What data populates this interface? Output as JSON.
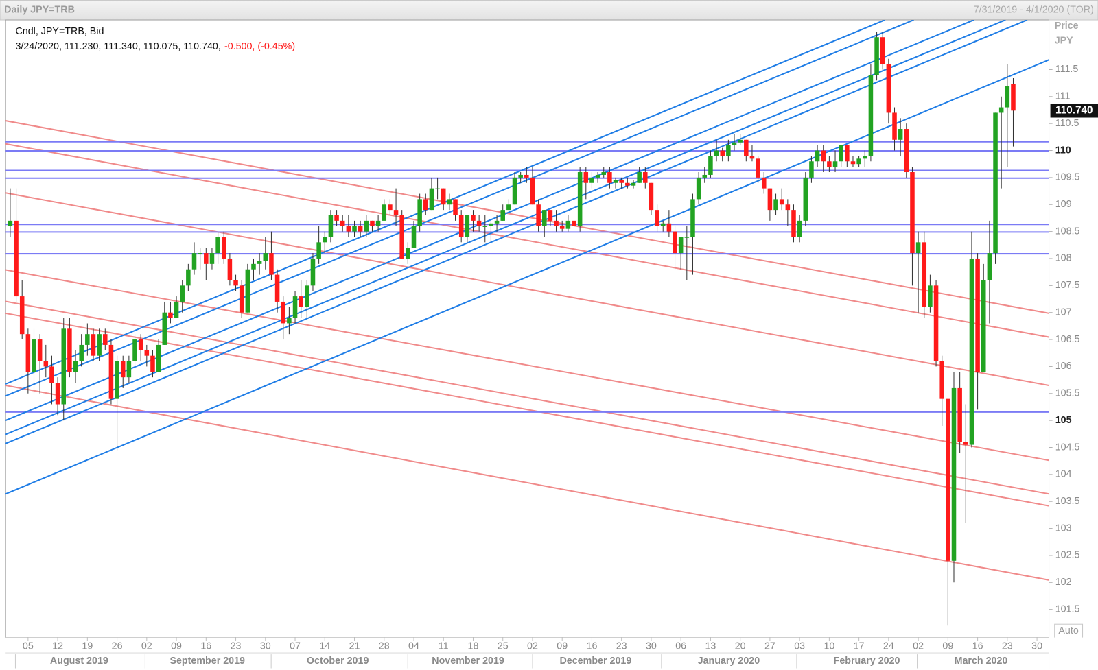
{
  "window": {
    "title": "Daily JPY=TRB",
    "range": "7/31/2019 - 4/1/2020 (TOR)"
  },
  "chart_data": {
    "type": "candlestick",
    "legend_title": "Cndl, JPY=TRB, Bid",
    "legend_values": "3/24/2020, 111.230, 111.340, 110.075, 110.740,",
    "legend_change": "-0.500, (-0.45%)",
    "y_axis_label": "Price",
    "y_axis_unit": "JPY",
    "last_price": {
      "value": 110.74,
      "label": "110.740"
    },
    "auto_label": "Auto",
    "up_color": "#22a322",
    "down_color": "#ff1a1a",
    "major_tick_step": 5,
    "ylim": [
      100.98,
      112.42
    ],
    "yticks": [
      101.5,
      102,
      102.5,
      103,
      103.5,
      104,
      104.5,
      105,
      105.5,
      106,
      106.5,
      107,
      107.5,
      108,
      108.5,
      109,
      109.5,
      110,
      110.5,
      111,
      111.5
    ],
    "x_labels": [
      "05",
      "12",
      "19",
      "26",
      "02",
      "09",
      "16",
      "23",
      "30",
      "07",
      "14",
      "21",
      "28",
      "04",
      "11",
      "18",
      "25",
      "02",
      "09",
      "16",
      "23",
      "30",
      "06",
      "13",
      "20",
      "27",
      "03",
      "10",
      "17",
      "24",
      "02",
      "09",
      "16",
      "23",
      "30"
    ],
    "month_labels": [
      "August 2019",
      "September 2019",
      "October 2019",
      "November 2019",
      "December 2019",
      "January 2020",
      "February 2020",
      "March 2020"
    ],
    "ohlc": [
      [
        108.6,
        109.3,
        108.4,
        108.7
      ],
      [
        108.7,
        109.3,
        107.2,
        107.3
      ],
      [
        107.3,
        107.6,
        106.5,
        106.6
      ],
      [
        106.6,
        106.7,
        105.5,
        105.9
      ],
      [
        105.9,
        106.7,
        105.5,
        106.5
      ],
      [
        106.5,
        106.6,
        105.5,
        106.1
      ],
      [
        106.1,
        106.4,
        105.8,
        106.0
      ],
      [
        106.0,
        106.2,
        105.3,
        105.7
      ],
      [
        105.7,
        105.8,
        105.1,
        105.3
      ],
      [
        105.3,
        106.9,
        105.0,
        106.7
      ],
      [
        106.7,
        106.9,
        105.8,
        105.9
      ],
      [
        105.9,
        106.3,
        105.7,
        106.1
      ],
      [
        106.1,
        106.6,
        106.0,
        106.4
      ],
      [
        106.4,
        106.8,
        106.2,
        106.6
      ],
      [
        106.6,
        106.7,
        106.1,
        106.2
      ],
      [
        106.2,
        106.7,
        106.1,
        106.6
      ],
      [
        106.6,
        106.7,
        106.3,
        106.4
      ],
      [
        106.4,
        106.5,
        105.3,
        105.4
      ],
      [
        105.4,
        106.2,
        104.45,
        106.1
      ],
      [
        106.1,
        106.2,
        105.6,
        105.8
      ],
      [
        105.8,
        106.2,
        105.7,
        106.1
      ],
      [
        106.1,
        106.6,
        106.0,
        106.5
      ],
      [
        106.5,
        106.6,
        106.1,
        106.3
      ],
      [
        106.3,
        106.4,
        106.0,
        106.2
      ],
      [
        106.2,
        106.3,
        105.8,
        105.9
      ],
      [
        105.9,
        106.5,
        105.9,
        106.4
      ],
      [
        106.4,
        107.2,
        106.4,
        107.0
      ],
      [
        107.0,
        107.2,
        106.8,
        106.9
      ],
      [
        106.9,
        107.3,
        106.9,
        107.2
      ],
      [
        107.2,
        107.6,
        107.0,
        107.5
      ],
      [
        107.5,
        107.9,
        107.4,
        107.8
      ],
      [
        107.8,
        108.3,
        107.7,
        108.1
      ],
      [
        108.1,
        108.2,
        107.8,
        108.1
      ],
      [
        108.1,
        108.2,
        107.6,
        107.9
      ],
      [
        107.9,
        108.2,
        107.8,
        108.1
      ],
      [
        108.1,
        108.5,
        107.9,
        108.4
      ],
      [
        108.4,
        108.5,
        107.9,
        108.0
      ],
      [
        108.0,
        108.1,
        107.5,
        107.6
      ],
      [
        107.6,
        107.7,
        107.4,
        107.5
      ],
      [
        107.5,
        107.6,
        106.9,
        107.0
      ],
      [
        107.0,
        107.9,
        107.0,
        107.8
      ],
      [
        107.8,
        108.0,
        107.6,
        107.9
      ],
      [
        107.9,
        108.1,
        107.7,
        107.95
      ],
      [
        107.95,
        108.4,
        107.8,
        108.1
      ],
      [
        108.1,
        108.5,
        107.6,
        107.7
      ],
      [
        107.7,
        107.8,
        107.0,
        107.2
      ],
      [
        107.2,
        107.3,
        106.5,
        106.8
      ],
      [
        106.8,
        107.1,
        106.6,
        106.9
      ],
      [
        106.9,
        107.4,
        106.8,
        107.3
      ],
      [
        107.3,
        107.6,
        106.9,
        107.1
      ],
      [
        107.1,
        107.6,
        106.9,
        107.5
      ],
      [
        107.5,
        108.1,
        107.4,
        108.0
      ],
      [
        108.0,
        108.6,
        107.9,
        108.3
      ],
      [
        108.3,
        108.5,
        108.1,
        108.4
      ],
      [
        108.4,
        108.9,
        108.3,
        108.8
      ],
      [
        108.8,
        108.9,
        108.6,
        108.7
      ],
      [
        108.7,
        108.8,
        108.5,
        108.6
      ],
      [
        108.6,
        108.8,
        108.4,
        108.5
      ],
      [
        108.5,
        108.7,
        108.4,
        108.6
      ],
      [
        108.6,
        108.7,
        108.4,
        108.5
      ],
      [
        108.5,
        108.8,
        108.4,
        108.7
      ],
      [
        108.7,
        108.7,
        108.5,
        108.6
      ],
      [
        108.6,
        108.8,
        108.5,
        108.7
      ],
      [
        108.7,
        109.1,
        108.7,
        109.0
      ],
      [
        109.0,
        109.1,
        108.8,
        108.9
      ],
      [
        108.9,
        109.3,
        108.6,
        108.8
      ],
      [
        108.8,
        108.9,
        108.0,
        108.0
      ],
      [
        108.0,
        108.3,
        107.9,
        108.2
      ],
      [
        108.2,
        108.7,
        108.2,
        108.6
      ],
      [
        108.6,
        109.2,
        108.5,
        109.1
      ],
      [
        109.1,
        109.2,
        108.8,
        108.9
      ],
      [
        108.9,
        109.5,
        108.9,
        109.3
      ],
      [
        109.3,
        109.5,
        109.1,
        109.3
      ],
      [
        109.3,
        109.3,
        108.9,
        109.0
      ],
      [
        109.0,
        109.2,
        108.9,
        109.1
      ],
      [
        109.1,
        109.1,
        108.7,
        108.8
      ],
      [
        108.8,
        108.9,
        108.3,
        108.4
      ],
      [
        108.4,
        108.8,
        108.3,
        108.8
      ],
      [
        108.8,
        108.9,
        108.5,
        108.7
      ],
      [
        108.7,
        108.8,
        108.5,
        108.6
      ],
      [
        108.6,
        108.8,
        108.3,
        108.6
      ],
      [
        108.6,
        108.7,
        108.3,
        108.65
      ],
      [
        108.65,
        108.8,
        108.5,
        108.7
      ],
      [
        108.7,
        109.0,
        108.7,
        108.9
      ],
      [
        108.9,
        109.1,
        108.9,
        109.0
      ],
      [
        109.0,
        109.6,
        109.0,
        109.5
      ],
      [
        109.5,
        109.6,
        109.4,
        109.55
      ],
      [
        109.55,
        109.7,
        109.4,
        109.5
      ],
      [
        109.5,
        109.7,
        109.0,
        109.0
      ],
      [
        109.0,
        109.1,
        108.5,
        108.6
      ],
      [
        108.6,
        108.9,
        108.4,
        108.9
      ],
      [
        108.9,
        108.9,
        108.6,
        108.7
      ],
      [
        108.7,
        108.9,
        108.5,
        108.6
      ],
      [
        108.6,
        108.7,
        108.5,
        108.55
      ],
      [
        108.55,
        108.8,
        108.5,
        108.7
      ],
      [
        108.7,
        108.8,
        108.4,
        108.6
      ],
      [
        108.6,
        109.7,
        108.5,
        109.6
      ],
      [
        109.6,
        109.7,
        109.1,
        109.4
      ],
      [
        109.4,
        109.6,
        109.3,
        109.5
      ],
      [
        109.5,
        109.6,
        109.4,
        109.55
      ],
      [
        109.55,
        109.7,
        109.5,
        109.6
      ],
      [
        109.6,
        109.7,
        109.3,
        109.4
      ],
      [
        109.4,
        109.5,
        109.3,
        109.45
      ],
      [
        109.45,
        109.5,
        109.3,
        109.4
      ],
      [
        109.4,
        109.5,
        109.3,
        109.35
      ],
      [
        109.35,
        109.45,
        109.3,
        109.4
      ],
      [
        109.4,
        109.7,
        109.4,
        109.6
      ],
      [
        109.6,
        109.7,
        109.3,
        109.4
      ],
      [
        109.4,
        109.4,
        108.8,
        108.9
      ],
      [
        108.9,
        109.0,
        108.5,
        108.6
      ],
      [
        108.6,
        108.7,
        108.5,
        108.65
      ],
      [
        108.65,
        108.9,
        108.4,
        108.5
      ],
      [
        108.5,
        108.6,
        107.8,
        108.1
      ],
      [
        108.1,
        108.4,
        107.8,
        108.4
      ],
      [
        108.4,
        108.6,
        107.6,
        108.4
      ],
      [
        108.4,
        109.2,
        107.7,
        109.1
      ],
      [
        109.1,
        109.6,
        109.0,
        109.5
      ],
      [
        109.5,
        109.7,
        109.4,
        109.55
      ],
      [
        109.55,
        110.0,
        109.5,
        109.9
      ],
      [
        109.9,
        110.2,
        109.8,
        110.0
      ],
      [
        110.0,
        110.05,
        109.8,
        109.9
      ],
      [
        109.9,
        110.2,
        109.8,
        110.1
      ],
      [
        110.1,
        110.3,
        110.0,
        110.15
      ],
      [
        110.15,
        110.3,
        110.1,
        110.2
      ],
      [
        110.2,
        110.2,
        109.8,
        109.9
      ],
      [
        109.9,
        110.1,
        109.8,
        109.85
      ],
      [
        109.85,
        109.9,
        109.4,
        109.5
      ],
      [
        109.5,
        109.6,
        109.2,
        109.3
      ],
      [
        109.3,
        109.3,
        108.7,
        108.9
      ],
      [
        108.9,
        109.2,
        108.8,
        109.1
      ],
      [
        109.1,
        109.3,
        108.9,
        109.0
      ],
      [
        109.0,
        109.1,
        108.6,
        108.9
      ],
      [
        108.9,
        109.0,
        108.3,
        108.4
      ],
      [
        108.4,
        108.8,
        108.3,
        108.7
      ],
      [
        108.7,
        109.6,
        108.6,
        109.5
      ],
      [
        109.5,
        109.9,
        109.4,
        109.8
      ],
      [
        109.8,
        110.1,
        109.7,
        110.0
      ],
      [
        110.0,
        110.1,
        109.6,
        109.8
      ],
      [
        109.8,
        109.9,
        109.6,
        109.7
      ],
      [
        109.7,
        110.0,
        109.6,
        109.8
      ],
      [
        109.8,
        110.1,
        109.7,
        110.1
      ],
      [
        110.1,
        110.1,
        109.7,
        109.8
      ],
      [
        109.8,
        109.9,
        109.7,
        109.75
      ],
      [
        109.75,
        109.9,
        109.7,
        109.85
      ],
      [
        109.85,
        110.0,
        109.7,
        109.9
      ],
      [
        109.9,
        111.6,
        109.8,
        111.4
      ],
      [
        111.4,
        112.2,
        111.3,
        112.1
      ],
      [
        112.1,
        112.2,
        111.5,
        111.6
      ],
      [
        111.6,
        111.7,
        110.5,
        110.7
      ],
      [
        110.7,
        110.8,
        110.0,
        110.2
      ],
      [
        110.2,
        110.6,
        109.9,
        110.4
      ],
      [
        110.4,
        110.5,
        109.5,
        109.6
      ],
      [
        109.6,
        109.7,
        107.5,
        108.1
      ],
      [
        108.1,
        108.5,
        107.0,
        108.3
      ],
      [
        108.3,
        108.5,
        106.9,
        107.1
      ],
      [
        107.1,
        107.7,
        107.0,
        107.5
      ],
      [
        107.5,
        107.6,
        106.0,
        106.1
      ],
      [
        106.1,
        106.2,
        104.9,
        105.4
      ],
      [
        105.4,
        105.4,
        101.2,
        102.4
      ],
      [
        102.4,
        105.9,
        102.0,
        105.6
      ],
      [
        105.6,
        105.9,
        104.4,
        104.6
      ],
      [
        104.6,
        105.3,
        103.1,
        104.55
      ],
      [
        104.55,
        108.5,
        104.5,
        108.0
      ],
      [
        108.0,
        108.1,
        105.2,
        105.9
      ],
      [
        105.9,
        107.9,
        105.9,
        107.6
      ],
      [
        107.6,
        108.7,
        106.8,
        108.1
      ],
      [
        108.1,
        110.7,
        107.9,
        110.7
      ],
      [
        110.7,
        111.0,
        109.3,
        110.8
      ],
      [
        110.8,
        111.6,
        109.7,
        111.2
      ],
      [
        111.23,
        111.34,
        110.075,
        110.74
      ]
    ]
  }
}
